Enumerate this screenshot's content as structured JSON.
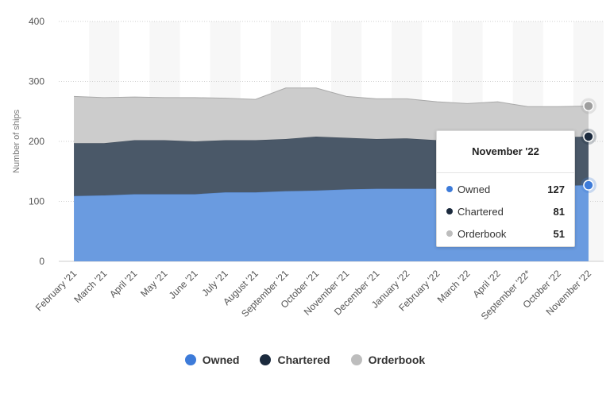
{
  "chart_data": {
    "type": "area",
    "stacked": true,
    "title": "",
    "xlabel": "",
    "ylabel": "Number of ships",
    "ylim": [
      0,
      400
    ],
    "yticks": [
      0,
      100,
      200,
      300,
      400
    ],
    "categories": [
      "February '21",
      "March '21",
      "April '21",
      "May '21",
      "June '21",
      "July '21",
      "August '21",
      "September '21",
      "October '21",
      "November '21",
      "December '21",
      "January '22",
      "February '22",
      "March '22",
      "April '22",
      "September '22*",
      "October '22",
      "November '22"
    ],
    "series": [
      {
        "name": "Owned",
        "color": "#6a9be0",
        "values": [
          109,
          110,
          112,
          112,
          112,
          115,
          115,
          117,
          118,
          120,
          121,
          121,
          121,
          123,
          124,
          125,
          126,
          127
        ]
      },
      {
        "name": "Chartered",
        "color": "#4a5868",
        "values": [
          88,
          87,
          90,
          90,
          88,
          87,
          87,
          87,
          90,
          86,
          83,
          84,
          81,
          79,
          79,
          80,
          81,
          81
        ]
      },
      {
        "name": "Orderbook",
        "color": "#cccccc",
        "values": [
          78,
          76,
          72,
          71,
          73,
          70,
          68,
          85,
          81,
          69,
          67,
          66,
          64,
          61,
          63,
          53,
          51,
          51
        ]
      }
    ],
    "grid": true,
    "legend_position": "bottom-center",
    "highlight_index": 17
  },
  "legend": {
    "items": [
      {
        "label": "Owned",
        "color": "#3d7bd9"
      },
      {
        "label": "Chartered",
        "color": "#1b2a3d"
      },
      {
        "label": "Orderbook",
        "color": "#bdbdbd"
      }
    ]
  },
  "tooltip": {
    "title": "November '22",
    "rows": [
      {
        "label": "Owned",
        "value": "127",
        "color": "#3d7bd9"
      },
      {
        "label": "Chartered",
        "value": "81",
        "color": "#1b2a3d"
      },
      {
        "label": "Orderbook",
        "value": "51",
        "color": "#bdbdbd"
      }
    ]
  }
}
